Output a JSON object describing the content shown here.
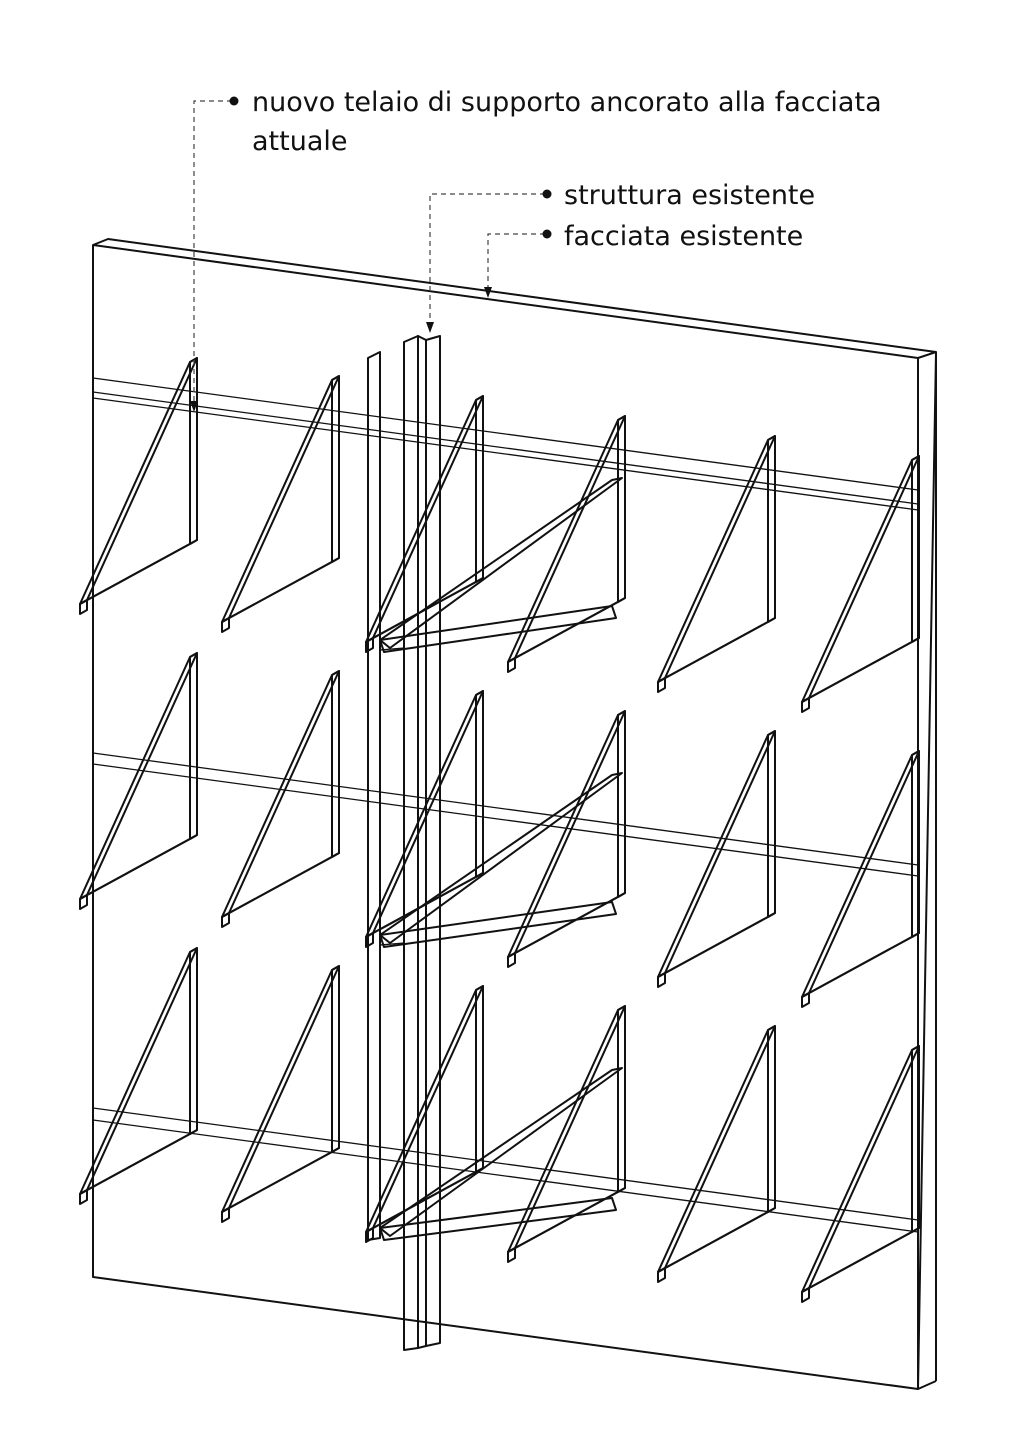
{
  "labels": {
    "new_frame_line1": "nuovo telaio di supporto ancorato alla facciata",
    "new_frame_line2": "attuale",
    "existing_structure": "struttura esistente",
    "existing_facade": "facciata esistente"
  },
  "colors": {
    "ink": "#111111",
    "background": "#ffffff",
    "leader": "#444444"
  }
}
